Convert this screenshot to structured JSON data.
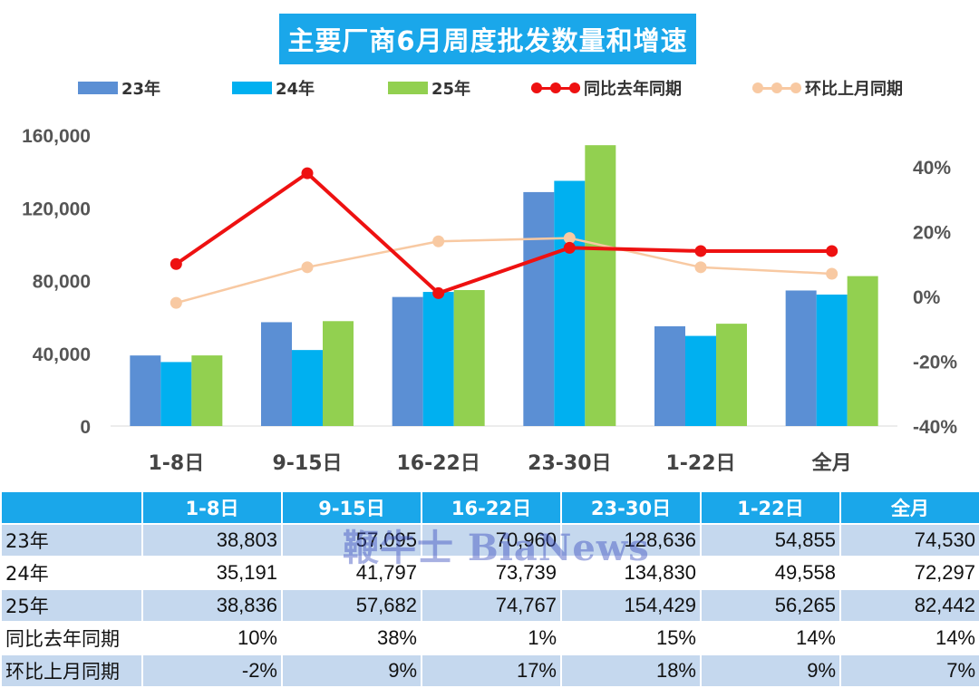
{
  "chart_data": {
    "type": "bar",
    "title": "主要厂商6月周度批发数量和增速",
    "categories": [
      "1-8日",
      "9-15日",
      "16-22日",
      "23-30日",
      "1-22日",
      "全月"
    ],
    "series": [
      {
        "name": "23年",
        "type": "bar",
        "axis": "left",
        "values": [
          38803,
          57095,
          70960,
          128636,
          54855,
          74530
        ]
      },
      {
        "name": "24年",
        "type": "bar",
        "axis": "left",
        "values": [
          35191,
          41797,
          73739,
          134830,
          49558,
          72297
        ]
      },
      {
        "name": "25年",
        "type": "bar",
        "axis": "left",
        "values": [
          38836,
          57682,
          74767,
          154429,
          56265,
          82442
        ]
      },
      {
        "name": "同比去年同期",
        "type": "line",
        "axis": "right",
        "values": [
          10,
          38,
          1,
          15,
          14,
          14
        ]
      },
      {
        "name": "环比上月同期",
        "type": "line",
        "axis": "right",
        "values": [
          -2,
          9,
          17,
          18,
          9,
          7
        ]
      }
    ],
    "ylim_left": [
      0,
      160000
    ],
    "yticks_left": [
      "0",
      "40,000",
      "80,000",
      "120,000",
      "160,000"
    ],
    "ylim_right": [
      -40,
      40
    ],
    "yticks_right": [
      "-40%",
      "-20%",
      "0%",
      "20%",
      "40%"
    ],
    "legend_position": "top",
    "grid": false
  },
  "colors": {
    "bar23": "#5b8fd4",
    "bar24": "#00b0f0",
    "bar25": "#92d050",
    "yoy": "#ee1111",
    "mom": "#f8c9a2",
    "header": "#1aa7ea",
    "row_alt": "#c5d8ee"
  },
  "table": {
    "headers": [
      "",
      "1-8日",
      "9-15日",
      "16-22日",
      "23-30日",
      "1-22日",
      "全月"
    ],
    "rows": [
      {
        "label": "23年",
        "cells": [
          "38,803",
          "57,095",
          "70,960",
          "128,636",
          "54,855",
          "74,530"
        ]
      },
      {
        "label": "24年",
        "cells": [
          "35,191",
          "41,797",
          "73,739",
          "134,830",
          "49,558",
          "72,297"
        ]
      },
      {
        "label": "25年",
        "cells": [
          "38,836",
          "57,682",
          "74,767",
          "154,429",
          "56,265",
          "82,442"
        ]
      },
      {
        "label": "同比去年同期",
        "cells": [
          "10%",
          "38%",
          "1%",
          "15%",
          "14%",
          "14%"
        ]
      },
      {
        "label": "环比上月同期",
        "cells": [
          "-2%",
          "9%",
          "17%",
          "18%",
          "9%",
          "7%"
        ]
      }
    ]
  },
  "watermark": "鞭牛士 BiaNews"
}
